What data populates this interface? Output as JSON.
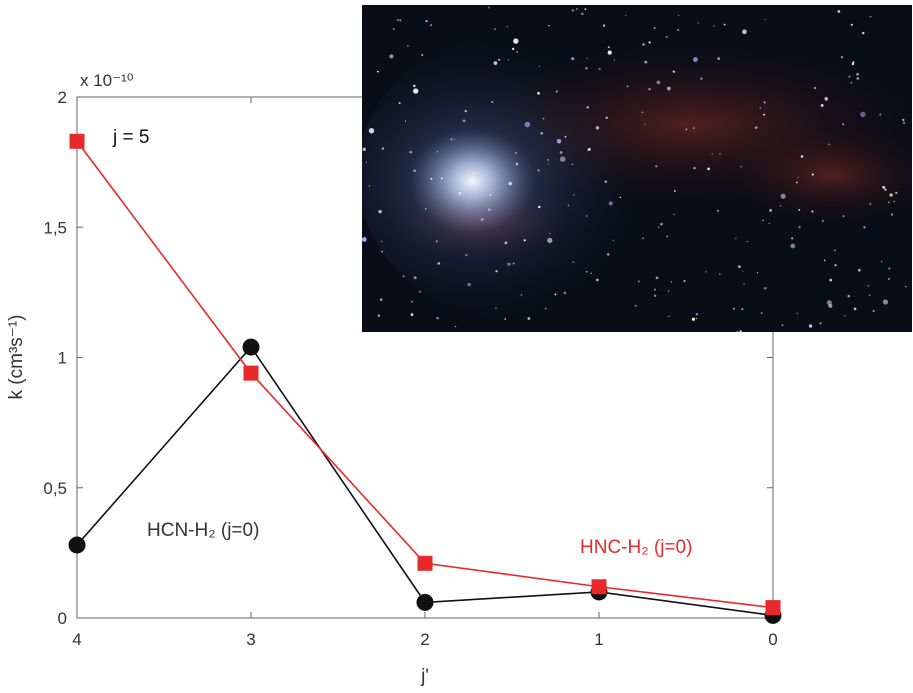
{
  "chart_data": {
    "type": "line",
    "title": "",
    "annotation": "j = 5",
    "xlabel": "j'",
    "ylabel": "k (cm³s⁻¹)",
    "y_multiplier": "x 10⁻¹⁰",
    "categories": [
      "4",
      "3",
      "2",
      "1",
      "0"
    ],
    "y_ticks": [
      "0",
      "0,5",
      "1",
      "1,5",
      "2"
    ],
    "ylim": [
      0,
      2
    ],
    "grid": false,
    "series": [
      {
        "name": "HCN-H₂ (j=0)",
        "color": "#111111",
        "marker": "circle",
        "values": [
          0.28,
          1.04,
          0.06,
          0.1,
          0.01
        ]
      },
      {
        "name": "HNC-H₂ (j=0)",
        "color": "#e8292b",
        "marker": "square",
        "values": [
          1.83,
          0.94,
          0.21,
          0.12,
          0.04
        ]
      }
    ]
  },
  "inset_image": {
    "subject": "nebula-starfield-photo",
    "colors": {
      "background": "#0a0d18",
      "core": "#dfe9ff",
      "dust": "#7a2a22"
    }
  }
}
